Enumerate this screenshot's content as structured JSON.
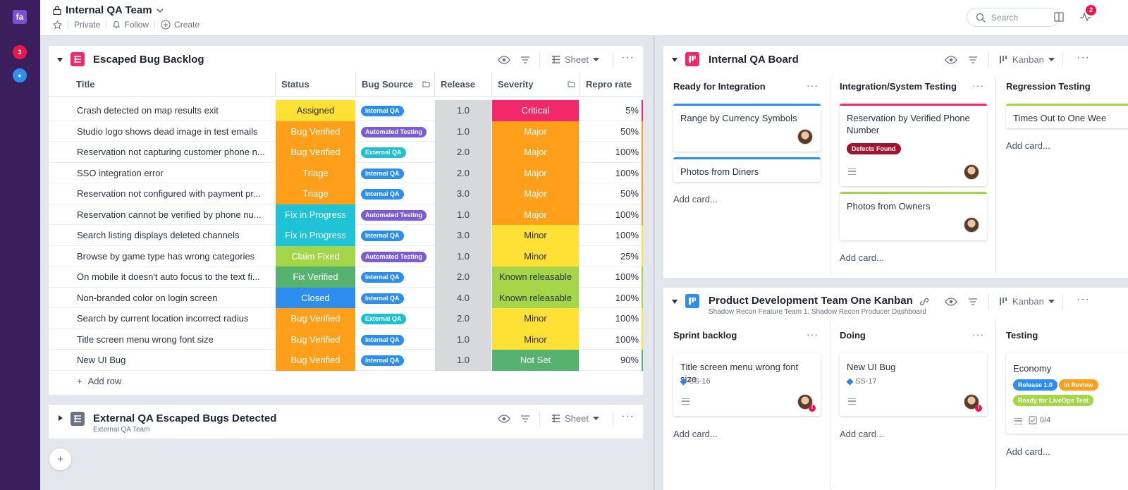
{
  "app": {
    "logo_text": "fa",
    "rail_badge_count": "3",
    "title": "Internal QA Team",
    "privacy": "Private",
    "follow": "Follow",
    "create": "Create",
    "search_placeholder": "Search",
    "notification_count": "2"
  },
  "sheet1": {
    "title": "Escaped Bug Backlog",
    "view": "Sheet",
    "columns": [
      "Title",
      "Status",
      "Bug Source",
      "Release",
      "Severity",
      "Repro rate"
    ],
    "rows": [
      {
        "title": "Crash detected on map results exit",
        "status": "Assigned",
        "source": "Internal QA",
        "release": "1.0",
        "severity": "Critical",
        "rate": "5%"
      },
      {
        "title": "Studio logo shows dead image in test emails",
        "status": "Bug Verified",
        "source": "Automated Testing",
        "release": "1.0",
        "severity": "Major",
        "rate": "50%"
      },
      {
        "title": "Reservation not capturing customer phone n...",
        "status": "Bug Verified",
        "source": "External QA",
        "release": "2.0",
        "severity": "Major",
        "rate": "100%"
      },
      {
        "title": "SSO integration error",
        "status": "Triage",
        "source": "Internal QA",
        "release": "2.0",
        "severity": "Major",
        "rate": "100%"
      },
      {
        "title": "Reservation not configured with payment pr...",
        "status": "Triage",
        "source": "Internal QA",
        "release": "3.0",
        "severity": "Major",
        "rate": "50%"
      },
      {
        "title": "Reservation cannot be verified by phone nu...",
        "status": "Fix in Progress",
        "source": "Automated Testing",
        "release": "1.0",
        "severity": "Major",
        "rate": "100%"
      },
      {
        "title": "Search listing displays deleted channels",
        "status": "Fix in Progress",
        "source": "Internal QA",
        "release": "3.0",
        "severity": "Minor",
        "rate": "100%"
      },
      {
        "title": "Browse by game type has wrong categories",
        "status": "Claim Fixed",
        "source": "Automated Testing",
        "release": "1.0",
        "severity": "Minor",
        "rate": "25%"
      },
      {
        "title": "On mobile it doesn't auto focus to the text fi...",
        "status": "Fix Verified",
        "source": "Internal QA",
        "release": "2.0",
        "severity": "Known releasable",
        "rate": "100%"
      },
      {
        "title": "Non-branded color on login screen",
        "status": "Closed",
        "source": "Internal QA",
        "release": "4.0",
        "severity": "Known releasable",
        "rate": "100%"
      },
      {
        "title": "Search by current location incorrect radius",
        "status": "Bug Verified",
        "source": "External QA",
        "release": "2.0",
        "severity": "Minor",
        "rate": "100%"
      },
      {
        "title": "Title screen menu wrong font size",
        "status": "Bug Verified",
        "source": "Internal QA",
        "release": "1.0",
        "severity": "Minor",
        "rate": "100%"
      },
      {
        "title": "New UI Bug",
        "status": "Bug Verified",
        "source": "Internal QA",
        "release": "1.0",
        "severity": "Not Set",
        "rate": "90%"
      }
    ],
    "add_row": "Add row"
  },
  "sheet2": {
    "title": "External QA Escaped Bugs Detected",
    "subtitle": "External QA Team",
    "view": "Sheet"
  },
  "board1": {
    "title": "Internal QA Board",
    "view": "Kanban",
    "columns": [
      {
        "title": "Ready for Integration",
        "add": "Add card...",
        "cards": [
          "Range by Currency Symbols",
          "Photos from Diners"
        ]
      },
      {
        "title": "Integration/System Testing",
        "add": "Add card...",
        "cards": [
          "Reservation by Verified Phone Number",
          "Photos from Owners"
        ],
        "tag": "Defects Found"
      },
      {
        "title": "Regression Testing",
        "add": "Add card...",
        "cards": [
          "Times Out to One Wee"
        ]
      }
    ]
  },
  "board2": {
    "title": "Product Development Team One Kanban",
    "subtitle": "Shadow Recon Feature Team 1,  Shadow Recon Producer Dashboard",
    "view": "Kanban",
    "columns": [
      {
        "title": "Sprint backlog",
        "add": "Add card...",
        "card": "Title screen menu wrong font size",
        "key": "SS-16"
      },
      {
        "title": "Doing",
        "add": "Add card...",
        "card": "New UI Bug",
        "key": "SS-17"
      },
      {
        "title": "Testing",
        "add": "Add card...",
        "card": "Economy",
        "tags": [
          "Release 1.0",
          "In Review",
          "Ready for LiveOps Test"
        ],
        "checklist": "0/4"
      }
    ]
  },
  "colors": {
    "Assigned": "#ffe135",
    "Bug Verified": "#ff9f1a",
    "Triage": "#ff9f1a",
    "Fix in Progress": "#1fc3d6",
    "Claim Fixed": "#a5d64a",
    "Fix Verified": "#56b36f",
    "Closed": "#2d8ef0",
    "Internal QA": "#2d8ef0",
    "Automated Testing": "#7b5bd6",
    "External QA": "#1fbfcf",
    "Critical": "#f2286a",
    "Major": "#ff9f1a",
    "Minor": "#ffe135",
    "Known releasable": "#a5d64a",
    "Not Set": "#56b36f"
  }
}
